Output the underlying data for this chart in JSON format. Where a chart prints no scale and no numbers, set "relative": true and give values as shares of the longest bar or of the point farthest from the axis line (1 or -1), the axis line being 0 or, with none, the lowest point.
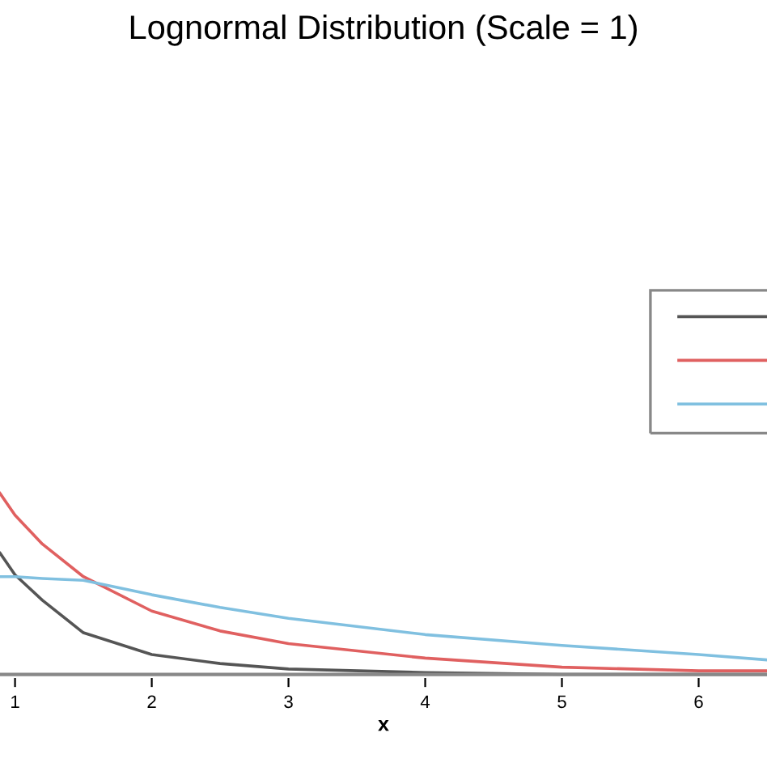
{
  "chart_data": {
    "type": "line",
    "title": "Lognormal Distribution (Scale = 1)",
    "xlabel": "x",
    "relative": true,
    "xlim": [
      0.89,
      6.5
    ],
    "xticks": [
      1,
      2,
      3,
      4,
      5,
      6
    ],
    "grid": false,
    "marker": "none",
    "line_style": "solid",
    "series": [
      {
        "color": "#555555",
        "x": [
          0.89,
          1.0,
          1.2,
          1.5,
          2,
          2.5,
          3,
          4,
          5,
          6,
          6.5
        ],
        "values": [
          0.67,
          0.55,
          0.41,
          0.23,
          0.11,
          0.06,
          0.03,
          0.01,
          0.0,
          0.0,
          0.0
        ]
      },
      {
        "color": "#e06060",
        "x": [
          0.89,
          1.0,
          1.2,
          1.5,
          2,
          2.5,
          3,
          4,
          5,
          6,
          6.5
        ],
        "values": [
          1.0,
          0.88,
          0.72,
          0.54,
          0.35,
          0.24,
          0.17,
          0.09,
          0.04,
          0.02,
          0.02
        ]
      },
      {
        "color": "#80c0e0",
        "x": [
          0.89,
          1.0,
          1.2,
          1.5,
          2,
          2.5,
          3,
          4,
          5,
          6,
          6.5
        ],
        "values": [
          0.54,
          0.54,
          0.53,
          0.52,
          0.44,
          0.37,
          0.31,
          0.22,
          0.16,
          0.11,
          0.08
        ]
      }
    ]
  }
}
